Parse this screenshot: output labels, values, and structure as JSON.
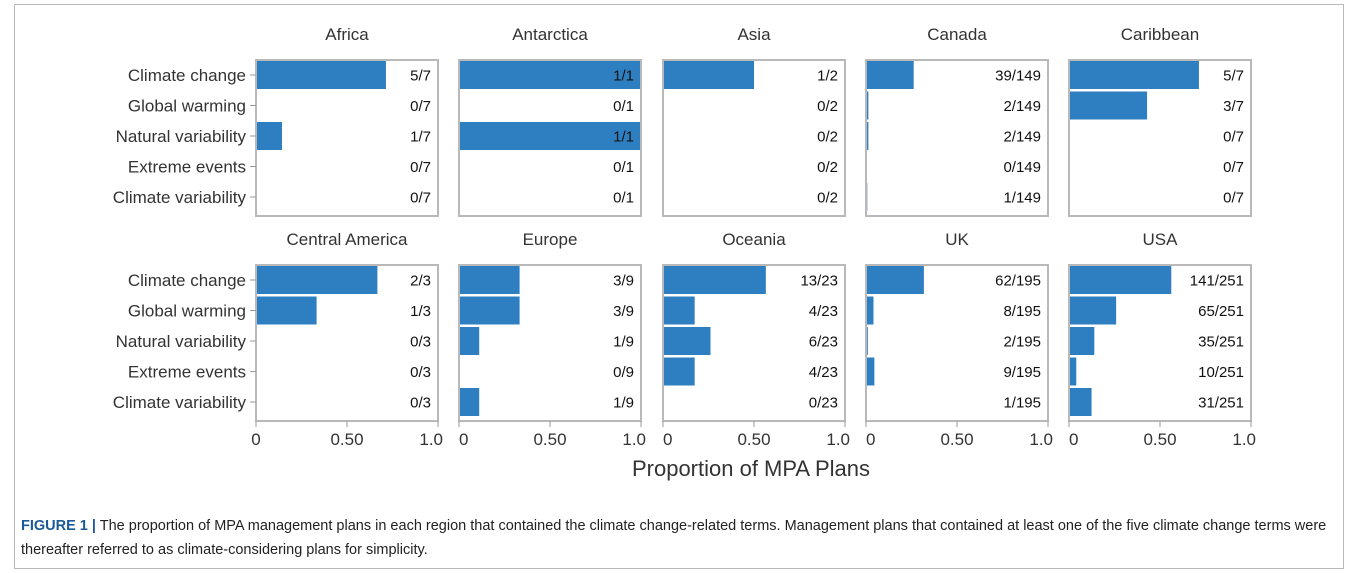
{
  "chart_data": {
    "type": "bar",
    "orientation": "horizontal",
    "layout": "small multiples, 2 rows x 5 columns",
    "xlabel": "Proportion of MPA Plans",
    "xlim": [
      0,
      1
    ],
    "x_ticks": [
      "0",
      "0.50",
      "1.0"
    ],
    "categories": [
      "Climate change",
      "Global warming",
      "Natural variability",
      "Extreme events",
      "Climate variability"
    ],
    "bar_color": "#2e7fc1",
    "panel_border_color": "#b9b9b9",
    "grid": false,
    "panels": [
      {
        "region": "Africa",
        "counts": [
          "5/7",
          "0/7",
          "1/7",
          "0/7",
          "0/7"
        ],
        "values": [
          0.714,
          0,
          0.143,
          0,
          0
        ]
      },
      {
        "region": "Antarctica",
        "counts": [
          "1/1",
          "0/1",
          "1/1",
          "0/1",
          "0/1"
        ],
        "values": [
          1,
          0,
          1,
          0,
          0
        ]
      },
      {
        "region": "Asia",
        "counts": [
          "1/2",
          "0/2",
          "0/2",
          "0/2",
          "0/2"
        ],
        "values": [
          0.5,
          0,
          0,
          0,
          0
        ]
      },
      {
        "region": "Canada",
        "counts": [
          "39/149",
          "2/149",
          "2/149",
          "0/149",
          "1/149"
        ],
        "values": [
          0.262,
          0.013,
          0.013,
          0,
          0.007
        ]
      },
      {
        "region": "Caribbean",
        "counts": [
          "5/7",
          "3/7",
          "0/7",
          "0/7",
          "0/7"
        ],
        "values": [
          0.714,
          0.429,
          0,
          0,
          0
        ]
      },
      {
        "region": "Central America",
        "counts": [
          "2/3",
          "1/3",
          "0/3",
          "0/3",
          "0/3"
        ],
        "values": [
          0.667,
          0.333,
          0,
          0,
          0
        ]
      },
      {
        "region": "Europe",
        "counts": [
          "3/9",
          "3/9",
          "1/9",
          "0/9",
          "1/9"
        ],
        "values": [
          0.333,
          0.333,
          0.111,
          0,
          0.111
        ]
      },
      {
        "region": "Oceania",
        "counts": [
          "13/23",
          "4/23",
          "6/23",
          "4/23",
          "0/23"
        ],
        "values": [
          0.565,
          0.174,
          0.261,
          0.174,
          0
        ]
      },
      {
        "region": "UK",
        "counts": [
          "62/195",
          "8/195",
          "2/195",
          "9/195",
          "1/195"
        ],
        "values": [
          0.318,
          0.041,
          0.01,
          0.046,
          0.005
        ]
      },
      {
        "region": "USA",
        "counts": [
          "141/251",
          "65/251",
          "35/251",
          "10/251",
          "31/251"
        ],
        "values": [
          0.562,
          0.259,
          0.139,
          0.04,
          0.124
        ]
      }
    ]
  },
  "caption": {
    "label": "FIGURE 1 |",
    "text": " The proportion of MPA management plans in each region that contained the climate change-related terms. Management plans that contained at least one of the five climate change terms were thereafter referred to as climate-considering plans for simplicity."
  }
}
